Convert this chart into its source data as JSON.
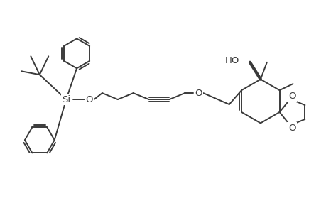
{
  "background": "#ffffff",
  "line_color": "#3a3a3a",
  "line_width": 1.4,
  "fig_width": 4.6,
  "fig_height": 3.0,
  "dpi": 100,
  "xlim": [
    0,
    9.2
  ],
  "ylim": [
    0,
    6.0
  ]
}
